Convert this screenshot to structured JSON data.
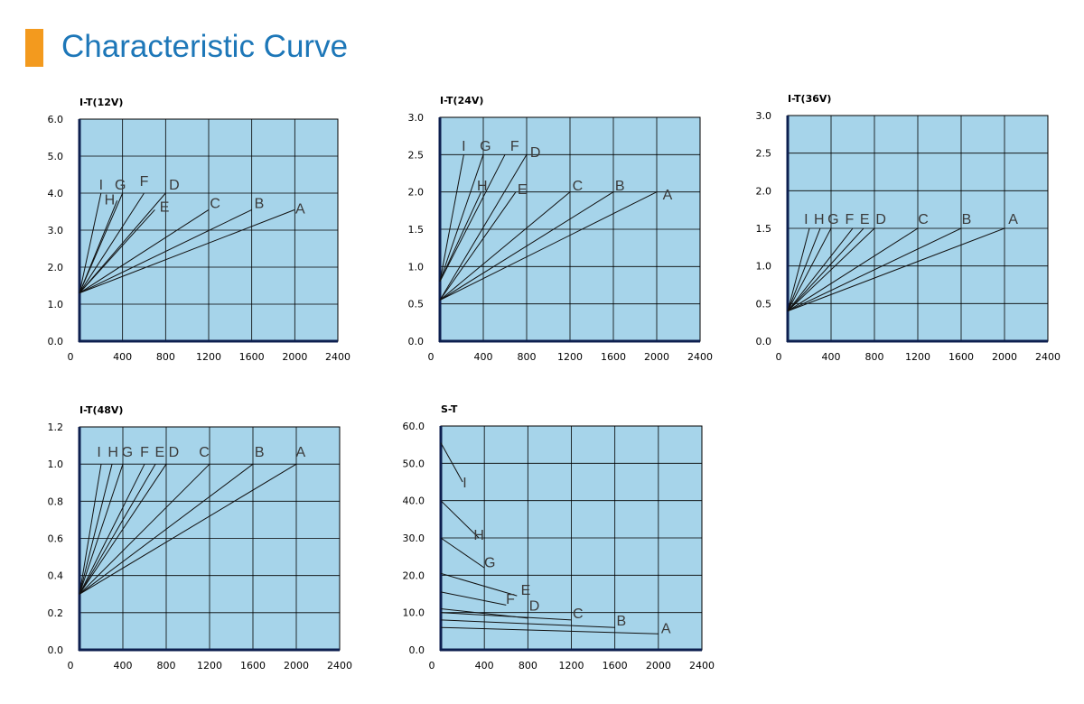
{
  "header": {
    "title": "Characteristic Curve"
  },
  "colors": {
    "accent_bar": "#f39a1e",
    "title": "#1d77b8",
    "plot_bg": "#a6d4ea",
    "grid": "#000000",
    "line": "#111111",
    "axis": "#0d1f4f"
  },
  "chart_data": [
    {
      "type": "line",
      "title": "I-T(12V)",
      "xticks": [
        "0",
        "400",
        "800",
        "1200",
        "1600",
        "2000",
        "2400"
      ],
      "yticks": [
        "0.0",
        "1.0",
        "2.0",
        "3.0",
        "4.0",
        "5.0",
        "6.0"
      ],
      "xlim": [
        0,
        2400
      ],
      "ylim": [
        0,
        6
      ],
      "series": [
        {
          "name": "A",
          "x": [
            0,
            2000
          ],
          "y": [
            1.3,
            3.55
          ],
          "label_pos": [
            2050,
            3.45
          ]
        },
        {
          "name": "B",
          "x": [
            0,
            1600
          ],
          "y": [
            1.3,
            3.55
          ],
          "label_pos": [
            1670,
            3.6
          ]
        },
        {
          "name": "C",
          "x": [
            0,
            1200
          ],
          "y": [
            1.3,
            3.55
          ],
          "label_pos": [
            1260,
            3.6
          ]
        },
        {
          "name": "D",
          "x": [
            0,
            800
          ],
          "y": [
            1.3,
            4.0
          ],
          "label_pos": [
            880,
            4.1
          ]
        },
        {
          "name": "E",
          "x": [
            0,
            700
          ],
          "y": [
            1.3,
            3.55
          ],
          "label_pos": [
            790,
            3.5
          ]
        },
        {
          "name": "F",
          "x": [
            0,
            600
          ],
          "y": [
            1.3,
            4.0
          ],
          "label_pos": [
            600,
            4.2
          ]
        },
        {
          "name": "G",
          "x": [
            0,
            400
          ],
          "y": [
            1.3,
            4.0
          ],
          "label_pos": [
            380,
            4.1
          ]
        },
        {
          "name": "H",
          "x": [
            0,
            350
          ],
          "y": [
            1.3,
            3.8
          ],
          "label_pos": [
            280,
            3.7
          ]
        },
        {
          "name": "I",
          "x": [
            0,
            200
          ],
          "y": [
            1.3,
            4.0
          ],
          "label_pos": [
            200,
            4.1
          ]
        }
      ]
    },
    {
      "type": "line",
      "title": "I-T(24V)",
      "xticks": [
        "0",
        "400",
        "800",
        "1200",
        "1600",
        "2000",
        "2400"
      ],
      "yticks": [
        "0.0",
        "0.5",
        "1.0",
        "1.5",
        "2.0",
        "2.5",
        "3.0"
      ],
      "xlim": [
        0,
        2400
      ],
      "ylim": [
        0,
        3
      ],
      "series": [
        {
          "name": "A",
          "x": [
            0,
            2000
          ],
          "y": [
            0.55,
            2.0
          ],
          "label_pos": [
            2100,
            1.9
          ]
        },
        {
          "name": "B",
          "x": [
            0,
            1600
          ],
          "y": [
            0.55,
            2.0
          ],
          "label_pos": [
            1660,
            2.02
          ]
        },
        {
          "name": "C",
          "x": [
            0,
            1200
          ],
          "y": [
            0.55,
            2.0
          ],
          "label_pos": [
            1270,
            2.02
          ]
        },
        {
          "name": "D",
          "x": [
            0,
            800
          ],
          "y": [
            0.55,
            2.5
          ],
          "label_pos": [
            880,
            2.47
          ]
        },
        {
          "name": "E",
          "x": [
            0,
            700
          ],
          "y": [
            0.55,
            2.0
          ],
          "label_pos": [
            760,
            1.97
          ]
        },
        {
          "name": "F",
          "x": [
            0,
            600
          ],
          "y": [
            0.8,
            2.5
          ],
          "label_pos": [
            690,
            2.55
          ]
        },
        {
          "name": "G",
          "x": [
            0,
            400
          ],
          "y": [
            0.8,
            2.5
          ],
          "label_pos": [
            420,
            2.55
          ]
        },
        {
          "name": "H",
          "x": [
            0,
            380
          ],
          "y": [
            0.8,
            2.0
          ],
          "label_pos": [
            390,
            2.02
          ]
        },
        {
          "name": "I",
          "x": [
            0,
            220
          ],
          "y": [
            0.8,
            2.5
          ],
          "label_pos": [
            220,
            2.55
          ]
        }
      ]
    },
    {
      "type": "line",
      "title": "I-T(36V)",
      "xticks": [
        "0",
        "400",
        "800",
        "1200",
        "1600",
        "2000",
        "2400"
      ],
      "yticks": [
        "0.0",
        "0.5",
        "1.0",
        "1.5",
        "2.0",
        "2.5",
        "3.0"
      ],
      "xlim": [
        0,
        2400
      ],
      "ylim": [
        0,
        3
      ],
      "series": [
        {
          "name": "A",
          "x": [
            0,
            2000
          ],
          "y": [
            0.4,
            1.5
          ],
          "label_pos": [
            2080,
            1.56
          ]
        },
        {
          "name": "B",
          "x": [
            0,
            1600
          ],
          "y": [
            0.4,
            1.5
          ],
          "label_pos": [
            1650,
            1.56
          ]
        },
        {
          "name": "C",
          "x": [
            0,
            1200
          ],
          "y": [
            0.4,
            1.5
          ],
          "label_pos": [
            1250,
            1.56
          ]
        },
        {
          "name": "D",
          "x": [
            0,
            800
          ],
          "y": [
            0.4,
            1.5
          ],
          "label_pos": [
            860,
            1.56
          ]
        },
        {
          "name": "E",
          "x": [
            0,
            700
          ],
          "y": [
            0.4,
            1.5
          ],
          "label_pos": [
            710,
            1.56
          ]
        },
        {
          "name": "F",
          "x": [
            0,
            600
          ],
          "y": [
            0.4,
            1.5
          ],
          "label_pos": [
            570,
            1.56
          ]
        },
        {
          "name": "G",
          "x": [
            0,
            400
          ],
          "y": [
            0.4,
            1.5
          ],
          "label_pos": [
            420,
            1.56
          ]
        },
        {
          "name": "H",
          "x": [
            0,
            300
          ],
          "y": [
            0.4,
            1.5
          ],
          "label_pos": [
            290,
            1.56
          ]
        },
        {
          "name": "I",
          "x": [
            0,
            200
          ],
          "y": [
            0.4,
            1.5
          ],
          "label_pos": [
            170,
            1.56
          ]
        }
      ]
    },
    {
      "type": "line",
      "title": "I-T(48V)",
      "xticks": [
        "0",
        "400",
        "800",
        "1200",
        "1600",
        "2000",
        "2400"
      ],
      "yticks": [
        "0.0",
        "0.2",
        "0.4",
        "0.6",
        "0.8",
        "1.0",
        "1.2"
      ],
      "xlim": [
        0,
        2400
      ],
      "ylim": [
        0,
        1.2
      ],
      "series": [
        {
          "name": "A",
          "x": [
            0,
            2000
          ],
          "y": [
            0.3,
            1.0
          ],
          "label_pos": [
            2040,
            1.04
          ]
        },
        {
          "name": "B",
          "x": [
            0,
            1600
          ],
          "y": [
            0.3,
            1.0
          ],
          "label_pos": [
            1660,
            1.04
          ]
        },
        {
          "name": "C",
          "x": [
            0,
            1200
          ],
          "y": [
            0.3,
            1.0
          ],
          "label_pos": [
            1150,
            1.04
          ]
        },
        {
          "name": "D",
          "x": [
            0,
            800
          ],
          "y": [
            0.3,
            1.0
          ],
          "label_pos": [
            870,
            1.04
          ]
        },
        {
          "name": "E",
          "x": [
            0,
            700
          ],
          "y": [
            0.3,
            1.0
          ],
          "label_pos": [
            740,
            1.04
          ]
        },
        {
          "name": "F",
          "x": [
            0,
            600
          ],
          "y": [
            0.3,
            1.0
          ],
          "label_pos": [
            600,
            1.04
          ]
        },
        {
          "name": "G",
          "x": [
            0,
            400
          ],
          "y": [
            0.3,
            1.0
          ],
          "label_pos": [
            440,
            1.04
          ]
        },
        {
          "name": "H",
          "x": [
            0,
            300
          ],
          "y": [
            0.3,
            1.0
          ],
          "label_pos": [
            310,
            1.04
          ]
        },
        {
          "name": "I",
          "x": [
            0,
            200
          ],
          "y": [
            0.3,
            1.0
          ],
          "label_pos": [
            180,
            1.04
          ]
        }
      ]
    },
    {
      "type": "line",
      "title": "S-T",
      "xticks": [
        "0",
        "400",
        "800",
        "1200",
        "1600",
        "2000",
        "2400"
      ],
      "yticks": [
        "0.0",
        "10.0",
        "20.0",
        "30.0",
        "40.0",
        "50.0",
        "60.0"
      ],
      "xlim": [
        0,
        2400
      ],
      "ylim": [
        0,
        60
      ],
      "series": [
        {
          "name": "A",
          "x": [
            0,
            2000
          ],
          "y": [
            6,
            4.3
          ],
          "label_pos": [
            2070,
            4.5
          ]
        },
        {
          "name": "B",
          "x": [
            0,
            1600
          ],
          "y": [
            8,
            6
          ],
          "label_pos": [
            1660,
            6.5
          ]
        },
        {
          "name": "C",
          "x": [
            0,
            1200
          ],
          "y": [
            10,
            8
          ],
          "label_pos": [
            1260,
            8.5
          ]
        },
        {
          "name": "D",
          "x": [
            0,
            800
          ],
          "y": [
            11,
            8.5
          ],
          "label_pos": [
            860,
            10.5
          ]
        },
        {
          "name": "E",
          "x": [
            0,
            700
          ],
          "y": [
            20.5,
            14.5
          ],
          "label_pos": [
            780,
            14.7
          ]
        },
        {
          "name": "F",
          "x": [
            0,
            600
          ],
          "y": [
            15.5,
            12
          ],
          "label_pos": [
            640,
            12.3
          ]
        },
        {
          "name": "G",
          "x": [
            0,
            400
          ],
          "y": [
            30,
            22
          ],
          "label_pos": [
            450,
            22.1
          ]
        },
        {
          "name": "H",
          "x": [
            0,
            350
          ],
          "y": [
            40,
            30
          ],
          "label_pos": [
            350,
            29.5
          ]
        },
        {
          "name": "I",
          "x": [
            0,
            200
          ],
          "y": [
            55.5,
            45
          ],
          "label_pos": [
            220,
            43.5
          ]
        }
      ]
    }
  ]
}
